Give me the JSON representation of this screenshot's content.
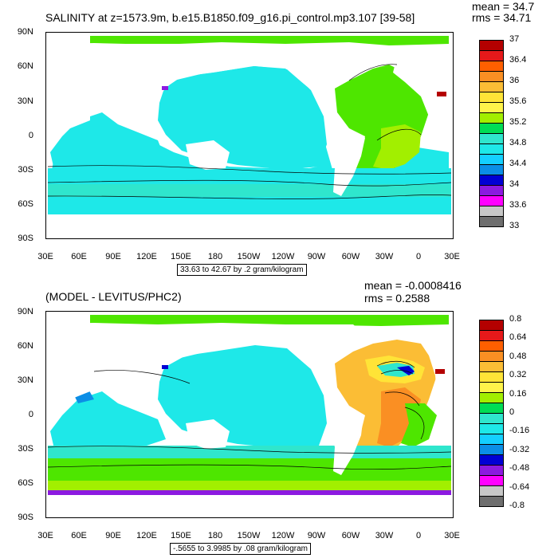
{
  "panel1": {
    "title": "SALINITY at z=1573.9m, b.e15.B1850.f09_g16.pi_control.mp3.107 [39-58]",
    "mean": "mean = 34.7",
    "rms": "rms = 34.71",
    "caption": "33.63 to 42.67 by .2 gram/kilogram",
    "lat_labels": [
      "90N",
      "60N",
      "30N",
      "0",
      "30S",
      "60S",
      "90S"
    ],
    "lon_labels": [
      "30E",
      "60E",
      "90E",
      "120E",
      "150E",
      "180",
      "150W",
      "120W",
      "90W",
      "60W",
      "30W",
      "0",
      "30E"
    ],
    "colorbar": {
      "labels": [
        "37",
        "36.4",
        "36",
        "35.6",
        "35.2",
        "34.8",
        "34.4",
        "34",
        "33.6",
        "33"
      ],
      "colors": [
        "#b40000",
        "#e6191a",
        "#ff5f00",
        "#fa8f23",
        "#fbbd35",
        "#ffe437",
        "#fff34a",
        "#a2ef00",
        "#00dd55",
        "#2fe6cd",
        "#1ee8e8",
        "#14cfff",
        "#0b8ee6",
        "#0000d4",
        "#8c1ae0",
        "#ff00ff",
        "#c7c7c7",
        "#6e6e6e"
      ]
    }
  },
  "panel2": {
    "title": "(MODEL - LEVITUS/PHC2)",
    "mean": "mean = -0.0008416",
    "rms": "rms = 0.2588",
    "caption": "-.5655 to 3.9985 by .08 gram/kilogram",
    "lat_labels": [
      "90N",
      "60N",
      "30N",
      "0",
      "30S",
      "60S",
      "90S"
    ],
    "lon_labels": [
      "30E",
      "60E",
      "90E",
      "120E",
      "150E",
      "180",
      "150W",
      "120W",
      "90W",
      "60W",
      "30W",
      "0",
      "30E"
    ],
    "colorbar": {
      "labels": [
        "0.8",
        "0.64",
        "0.48",
        "0.32",
        "0.16",
        "0",
        "-0.16",
        "-0.32",
        "-0.48",
        "-0.64",
        "-0.8"
      ],
      "colors": [
        "#b40000",
        "#e6191a",
        "#ff5f00",
        "#fa8f23",
        "#fbbd35",
        "#ffe437",
        "#fff34a",
        "#a2ef00",
        "#00dd55",
        "#2fe6cd",
        "#1ee8e8",
        "#14cfff",
        "#0b8ee6",
        "#0000d4",
        "#8c1ae0",
        "#ff00ff",
        "#c7c7c7",
        "#6e6e6e"
      ]
    }
  }
}
